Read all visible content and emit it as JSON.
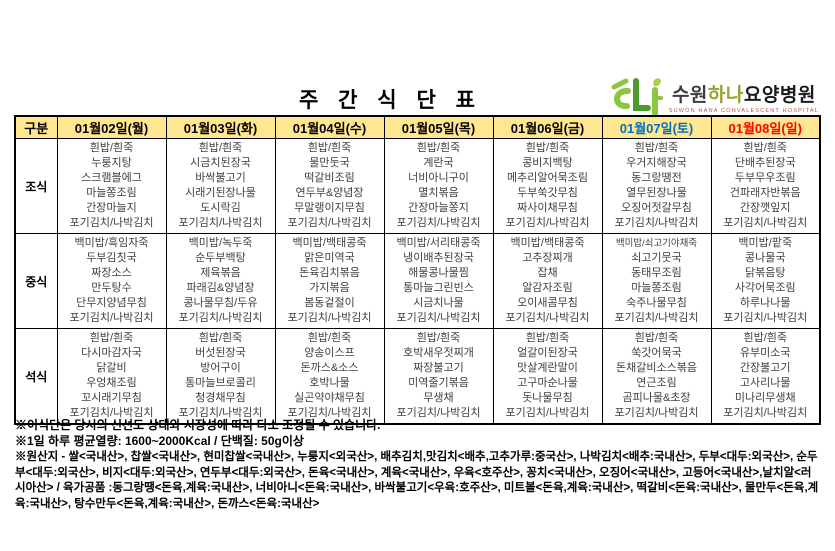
{
  "page": {
    "title": "주 간 식 단 표"
  },
  "logo": {
    "name_prefix": "수원",
    "name_mid": "하나",
    "name_suffix": "요양병원",
    "caption": "SUWON HANA CONVALESCENT HOSPITAL"
  },
  "colors": {
    "header_bg": "#ffe690",
    "saturday_text": "#0070c0",
    "sunday_text": "#ff0000",
    "menu_text": "#404040",
    "logo_green_light": "#8cc63f",
    "logo_green_dark": "#4e9a2e"
  },
  "table": {
    "corner_label": "구분",
    "days": [
      {
        "label": "01월02일(월)",
        "color": "#000000"
      },
      {
        "label": "01월03일(화)",
        "color": "#000000"
      },
      {
        "label": "01월04일(수)",
        "color": "#000000"
      },
      {
        "label": "01월05일(목)",
        "color": "#000000"
      },
      {
        "label": "01월06일(금)",
        "color": "#000000"
      },
      {
        "label": "01월07일(토)",
        "color": "#0070c0"
      },
      {
        "label": "01월08일(일)",
        "color": "#ff0000"
      }
    ],
    "meals": [
      {
        "label": "조식",
        "menus": [
          [
            "흰밥/흰죽",
            "누룽지탕",
            "스크램블에그",
            "마늘쫑조림",
            "간장마늘지",
            "포기김치/나박김치"
          ],
          [
            "흰밥/흰죽",
            "시금치된장국",
            "바싹불고기",
            "시래기된장나물",
            "도시락김",
            "포기김치/나박김치"
          ],
          [
            "흰밥/흰죽",
            "물만둣국",
            "떡갈비조림",
            "연두부&양념장",
            "무말랭이지무침",
            "포기김치/나박김치"
          ],
          [
            "흰밥/흰죽",
            "계란국",
            "너비아니구이",
            "멸치볶음",
            "간장마늘쫑지",
            "포기김치/나박김치"
          ],
          [
            "흰밥/흰죽",
            "콩비지백탕",
            "메추리알어묵조림",
            "두부쑥갓무침",
            "짜사이채무침",
            "포기김치/나박김치"
          ],
          [
            "흰밥/흰죽",
            "우거지해장국",
            "동그랑땡전",
            "열무된장나물",
            "오징어젓갈무침",
            "포기김치/나박김치"
          ],
          [
            "흰밥/흰죽",
            "단배추된장국",
            "두부무우조림",
            "건파래자반볶음",
            "간장깻잎지",
            "포기김치/나박김치"
          ]
        ]
      },
      {
        "label": "중식",
        "menus": [
          [
            "백미밥/흑임자죽",
            "두부김칫국",
            "짜장소스",
            "만두탕수",
            "단무지양념무침",
            "포기김치/나박김치"
          ],
          [
            "백미밥/녹두죽",
            "순두부백탕",
            "제육볶음",
            "파래김&양념장",
            "콩나물무침/두유",
            "포기김치/나박김치"
          ],
          [
            "백미밥/백태콩죽",
            "맑은미역국",
            "돈육김치볶음",
            "가지볶음",
            "봄동겉절이",
            "포기김치/나박김치"
          ],
          [
            "백미밥/서리태콩죽",
            "냉이배추된장국",
            "해물콩나물찜",
            "통마늘그린빈스",
            "시금치나물",
            "포기김치/나박김치"
          ],
          [
            "백미밥/백태콩죽",
            "고추장찌개",
            "잡채",
            "알감자조림",
            "오이새콤무침",
            "포기김치/나박김치"
          ],
          [
            "백미밥/쇠고기야채죽",
            "쇠고기뭇국",
            "동태무조림",
            "마늘쫑조림",
            "숙주나물무침",
            "포기김치/나박김치"
          ],
          [
            "백미밥/팥죽",
            "콩나물국",
            "닭볶음탕",
            "사각어묵조림",
            "하루나나물",
            "포기김치/나박김치"
          ]
        ]
      },
      {
        "label": "석식",
        "menus": [
          [
            "흰밥/흰죽",
            "다시마감자국",
            "닭갈비",
            "우엉채조림",
            "꼬시래기무침",
            "포기김치/나박김치"
          ],
          [
            "흰밥/흰죽",
            "버섯된장국",
            "방어구이",
            "통마늘브로콜리",
            "청경채무침",
            "포기김치/나박김치"
          ],
          [
            "흰밥/흰죽",
            "양송이스프",
            "돈까스&소스",
            "호박나물",
            "실곤약야채무침",
            "포기김치/나박김치"
          ],
          [
            "흰밥/흰죽",
            "호박새우젓찌개",
            "짜장불고기",
            "미역줄기볶음",
            "무생채",
            "포기김치/나박김치"
          ],
          [
            "흰밥/흰죽",
            "얼갈이된장국",
            "맛살계란말이",
            "고구마순나물",
            "돗나물무침",
            "포기김치/나박김치"
          ],
          [
            "흰밥/흰죽",
            "쑥갓어묵국",
            "돈채갈비소스볶음",
            "연근조림",
            "곰피나물&초장",
            "포기김치/나박김치"
          ],
          [
            "흰밥/흰죽",
            "유부미소국",
            "간장불고기",
            "고사리나물",
            "미나리무생채",
            "포기김치/나박김치"
          ]
        ]
      }
    ]
  },
  "notes": {
    "line1": "※이식단은 당시의 신선도 상태와 시장성에 따라 다소 조정될 수 있습니다.",
    "line2": "※1일 하루 평균열량: 1600~2000Kcal / 단백질: 50g이상",
    "origin": "※원산지 - 쌀<국내산>, 찹쌀<국내산>, 현미찹쌀<국내산>, 누룽지<외국산>, 배추김치,맛김치<배추,고추가루:중국산>, 나박김치<배추:국내산>, 두부<대두:외국산>, 순두부<대두:외국산>, 비지<대두:외국산>, 연두부<대두:외국산>, 돈육<국내산>, 계육<국내산>, 우육<호주산>, 꽁치<국내산>, 오징어<국내산>, 고등어<국내산>,날치알<러시아산> / 육가공품 :동그랑땡<돈육,계육:국내산>, 너비아니<돈육:국내산>, 바싹불고기<우육:호주산>, 미트볼<돈육,계육:국내산>, 떡갈비<돈육:국내산>, 물만두<돈육,계육:국내산>, 탕수만두<돈육,계육:국내산>, 돈까스<돈육:국내산>"
  }
}
